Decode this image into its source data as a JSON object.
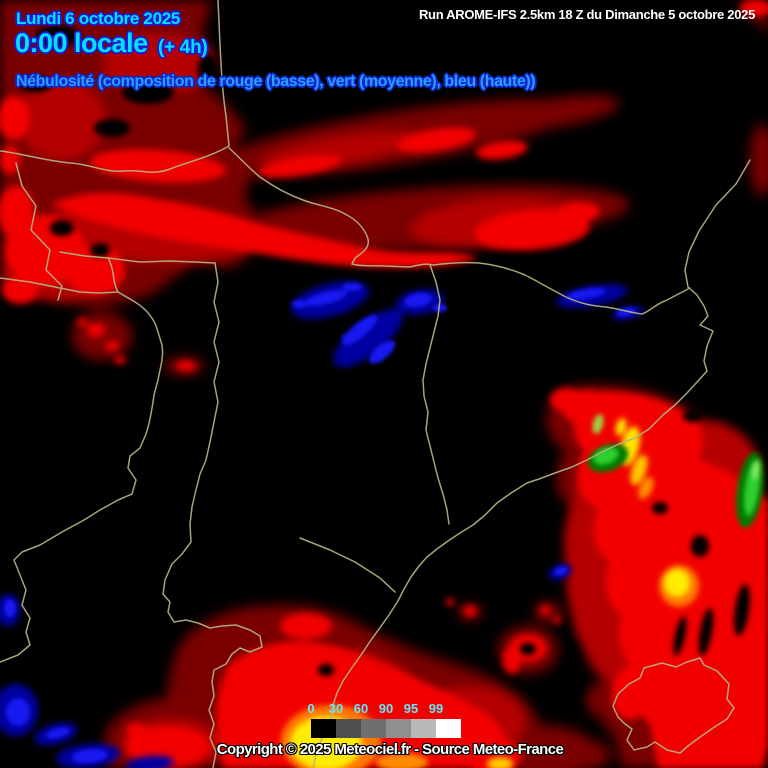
{
  "header": {
    "date_line": "Lundi 6 octobre 2025",
    "time_line": "0:00 locale",
    "offset": "(+ 4h)",
    "subtitle": "Nébulosité (composition de rouge (basse), vert (moyenne), bleu (haute))",
    "run_info": "Run AROME-IFS 2.5km 18 Z du Dimanche 5 octobre 2025",
    "title_color": "#00e2ff",
    "subtitle_color": "#2f9dff",
    "run_color": "#ffffff"
  },
  "legend": {
    "values": [
      "0",
      "30",
      "60",
      "90",
      "95",
      "99"
    ],
    "cell_colors": [
      "#000000",
      "#4f4f4f",
      "#6f6f6f",
      "#8f8f8f",
      "#b9b9b9",
      "#ffffff"
    ],
    "label_color": "#63e9f5"
  },
  "footer": {
    "copyright": "Copyright © 2025 Meteociel.fr - Source Meteo-France"
  },
  "map": {
    "colors": {
      "low_dark": "#7a0000",
      "low_mid": "#b40000",
      "low_bright": "#f20000",
      "high_fringe": "#0000a2",
      "high_core": "#1818f0",
      "mid_fringe": "#007a00",
      "mid_core": "#2fcf2f",
      "border": "#b3b385"
    }
  }
}
